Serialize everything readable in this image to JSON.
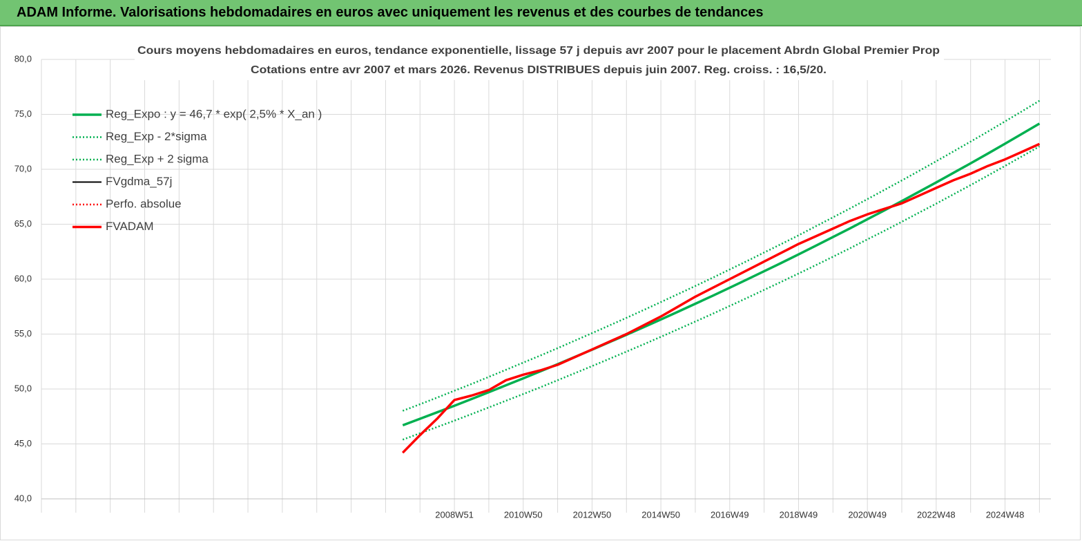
{
  "header": {
    "title": "ADAM Informe. Valorisations hebdomadaires en euros avec uniquement les revenus et des courbes de tendances"
  },
  "chart_data": {
    "type": "line",
    "title": "Cours moyens hebdomadaires en euros, tendance exponentielle, lissage 57 j depuis avr 2007  pour le placement Abrdn Global Premier Prop",
    "subtitle": "Cotations entre avr 2007 et mars 2026.  Revenus DISTRIBUES depuis juin 2007.  Reg. croiss. : 16,5/20.",
    "categories": [
      null,
      null,
      null,
      null,
      null,
      null,
      null,
      null,
      null,
      null,
      null,
      null,
      null,
      null,
      null,
      null,
      null,
      null,
      null,
      null,
      null,
      null,
      null,
      null,
      "2008W51",
      null,
      null,
      null,
      "2010W50",
      null,
      null,
      null,
      "2012W50",
      null,
      null,
      null,
      "2014W50",
      null,
      null,
      null,
      "2016W49",
      null,
      null,
      null,
      "2018W49",
      null,
      null,
      null,
      "2020W49",
      null,
      null,
      null,
      "2022W48",
      null,
      null,
      null,
      "2024W48",
      null,
      null
    ],
    "ylim": [
      40,
      80
    ],
    "yticks": [
      {
        "value": 40,
        "label": "40,0"
      },
      {
        "value": 45,
        "label": "45,0"
      },
      {
        "value": 50,
        "label": "50,0"
      },
      {
        "value": 55,
        "label": "55,0"
      },
      {
        "value": 60,
        "label": "60,0"
      },
      {
        "value": 65,
        "label": "65,0"
      },
      {
        "value": 70,
        "label": "70,0"
      },
      {
        "value": 75,
        "label": "75,0"
      },
      {
        "value": 80,
        "label": "80,0"
      }
    ],
    "grid": true,
    "legend": "top-left",
    "series": [
      {
        "name": "Reg_Expo : y = 46,7 * exp( 2,5% *  X_an )",
        "color": "#00b050",
        "line_style": "thick",
        "values": [
          null,
          null,
          null,
          null,
          null,
          null,
          null,
          null,
          null,
          null,
          null,
          null,
          null,
          null,
          null,
          null,
          null,
          null,
          null,
          null,
          null,
          46.7,
          47.29,
          47.88,
          48.48,
          49.09,
          49.71,
          50.34,
          50.97,
          51.61,
          52.26,
          52.92,
          53.58,
          54.26,
          54.94,
          55.63,
          56.33,
          57.04,
          57.76,
          58.48,
          59.22,
          59.96,
          60.72,
          61.48,
          62.25,
          63.04,
          63.83,
          64.63,
          65.45,
          66.27,
          67.1,
          67.95,
          68.8,
          69.67,
          70.54,
          71.43,
          72.33,
          73.24,
          74.16
        ]
      },
      {
        "name": "Reg_Exp - 2*sigma",
        "color": "#00b050",
        "line_style": "dotted",
        "values": [
          null,
          null,
          null,
          null,
          null,
          null,
          null,
          null,
          null,
          null,
          null,
          null,
          null,
          null,
          null,
          null,
          null,
          null,
          null,
          null,
          null,
          45.39,
          45.97,
          46.54,
          47.12,
          47.72,
          48.32,
          48.93,
          49.54,
          50.16,
          50.8,
          51.44,
          52.08,
          52.74,
          53.4,
          54.07,
          54.75,
          55.44,
          56.14,
          56.84,
          57.56,
          58.28,
          59.02,
          59.76,
          60.51,
          61.27,
          62.04,
          62.82,
          63.62,
          64.41,
          65.22,
          66.05,
          66.87,
          67.72,
          68.56,
          69.43,
          70.3,
          71.19,
          72.08
        ]
      },
      {
        "name": "Reg_Exp + 2 sigma",
        "color": "#00b050",
        "line_style": "dotted",
        "values": [
          null,
          null,
          null,
          null,
          null,
          null,
          null,
          null,
          null,
          null,
          null,
          null,
          null,
          null,
          null,
          null,
          null,
          null,
          null,
          null,
          null,
          48.01,
          48.61,
          49.22,
          49.84,
          50.46,
          51.1,
          51.75,
          52.4,
          53.05,
          53.72,
          54.4,
          55.08,
          55.78,
          56.48,
          57.19,
          57.91,
          58.64,
          59.38,
          60.12,
          60.88,
          61.64,
          62.42,
          63.2,
          63.99,
          64.81,
          65.62,
          66.44,
          67.28,
          68.13,
          68.98,
          69.85,
          70.73,
          71.62,
          72.52,
          73.43,
          74.36,
          75.29,
          76.24
        ]
      },
      {
        "name": "FVgdma_57j",
        "color": "#000000",
        "line_style": "solid",
        "values": [
          null,
          null,
          null,
          null,
          null,
          null,
          null,
          null,
          null,
          null,
          null,
          null,
          null,
          null,
          null,
          null,
          null,
          null,
          null,
          null,
          null,
          44.2,
          45.8,
          47.3,
          49.0,
          49.4,
          49.9,
          50.8,
          51.3,
          51.7,
          52.2,
          52.9,
          53.6,
          54.3,
          55.0,
          55.8,
          56.6,
          57.5,
          58.4,
          59.2,
          60.0,
          60.8,
          61.6,
          62.4,
          63.2,
          63.9,
          64.6,
          65.3,
          65.9,
          66.4,
          66.9,
          67.6,
          68.3,
          69.0,
          69.6,
          70.3,
          70.9,
          71.6,
          72.3
        ]
      },
      {
        "name": "Perfo. absolue",
        "color": "#ff0000",
        "line_style": "dotted",
        "values": [
          null,
          null,
          null,
          null,
          null,
          null,
          null,
          null,
          null,
          null,
          null,
          null,
          null,
          null,
          null,
          null,
          null,
          null,
          null,
          null,
          null,
          44.2,
          45.8,
          47.3,
          49.0,
          49.4,
          49.9,
          50.8,
          51.3,
          51.7,
          52.2,
          52.9,
          53.6,
          54.3,
          55.0,
          55.8,
          56.6,
          57.5,
          58.4,
          59.2,
          60.0,
          60.8,
          61.6,
          62.4,
          63.2,
          63.9,
          64.6,
          65.3,
          65.9,
          66.4,
          66.9,
          67.6,
          68.3,
          69.0,
          69.6,
          70.3,
          70.9,
          71.6,
          72.3
        ]
      },
      {
        "name": "FVADAM",
        "color": "#ff0000",
        "line_style": "thick",
        "values": [
          null,
          null,
          null,
          null,
          null,
          null,
          null,
          null,
          null,
          null,
          null,
          null,
          null,
          null,
          null,
          null,
          null,
          null,
          null,
          null,
          null,
          44.2,
          45.8,
          47.3,
          49.0,
          49.4,
          49.9,
          50.8,
          51.3,
          51.7,
          52.2,
          52.9,
          53.6,
          54.3,
          55.0,
          55.8,
          56.6,
          57.5,
          58.4,
          59.2,
          60.0,
          60.8,
          61.6,
          62.4,
          63.2,
          63.9,
          64.6,
          65.3,
          65.9,
          66.4,
          66.9,
          67.6,
          68.3,
          69.0,
          69.6,
          70.3,
          70.9,
          71.6,
          72.3
        ]
      }
    ]
  }
}
